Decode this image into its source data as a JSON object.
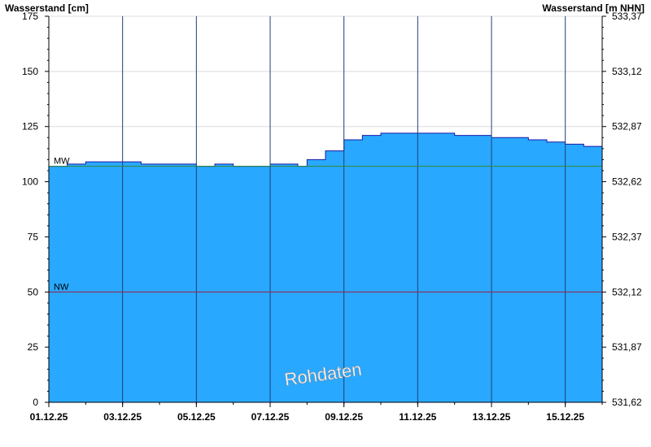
{
  "chart_data": {
    "type": "area",
    "ylabel_left": "Wasserstand [cm]",
    "ylabel_right": "Wasserstand [m NHN]",
    "watermark": "Rohdaten",
    "ylim": [
      0,
      175
    ],
    "xlim": [
      "2025-12-01",
      "2025-12-16"
    ],
    "y_ticks_left": [
      {
        "value": 0,
        "label": "0"
      },
      {
        "value": 25,
        "label": "25"
      },
      {
        "value": 50,
        "label": "50"
      },
      {
        "value": 75,
        "label": "75"
      },
      {
        "value": 100,
        "label": "100"
      },
      {
        "value": 125,
        "label": "125"
      },
      {
        "value": 150,
        "label": "150"
      },
      {
        "value": 175,
        "label": "175"
      }
    ],
    "y_ticks_right": [
      {
        "value": 0,
        "label": "531,62"
      },
      {
        "value": 25,
        "label": "531,87"
      },
      {
        "value": 50,
        "label": "532,12"
      },
      {
        "value": 75,
        "label": "532,37"
      },
      {
        "value": 100,
        "label": "532,62"
      },
      {
        "value": 125,
        "label": "532,87"
      },
      {
        "value": 150,
        "label": "533,12"
      },
      {
        "value": 175,
        "label": "533,37"
      }
    ],
    "x_ticks": [
      {
        "value": "2025-12-01",
        "label": "01.12.25"
      },
      {
        "value": "2025-12-03",
        "label": "03.12.25"
      },
      {
        "value": "2025-12-05",
        "label": "05.12.25"
      },
      {
        "value": "2025-12-07",
        "label": "07.12.25"
      },
      {
        "value": "2025-12-09",
        "label": "09.12.25"
      },
      {
        "value": "2025-12-11",
        "label": "11.12.25"
      },
      {
        "value": "2025-12-13",
        "label": "13.12.25"
      },
      {
        "value": "2025-12-15",
        "label": "15.12.25"
      }
    ],
    "reference_lines": [
      {
        "label": "MW",
        "value": 107,
        "color": "#2e8b3a"
      },
      {
        "label": "NW",
        "value": 50,
        "color": "#9b1c3c"
      }
    ],
    "series": [
      {
        "color": "#29a8ff",
        "outline": "#1a1aa8",
        "points": [
          {
            "x": "2025-12-01 00:00",
            "y": 107
          },
          {
            "x": "2025-12-01 12:00",
            "y": 108
          },
          {
            "x": "2025-12-02 00:00",
            "y": 109
          },
          {
            "x": "2025-12-02 12:00",
            "y": 109
          },
          {
            "x": "2025-12-03 00:00",
            "y": 109
          },
          {
            "x": "2025-12-03 12:00",
            "y": 108
          },
          {
            "x": "2025-12-04 00:00",
            "y": 108
          },
          {
            "x": "2025-12-04 12:00",
            "y": 108
          },
          {
            "x": "2025-12-05 00:00",
            "y": 107
          },
          {
            "x": "2025-12-05 12:00",
            "y": 108
          },
          {
            "x": "2025-12-06 00:00",
            "y": 107
          },
          {
            "x": "2025-12-06 12:00",
            "y": 107
          },
          {
            "x": "2025-12-07 00:00",
            "y": 108
          },
          {
            "x": "2025-12-07 12:00",
            "y": 108
          },
          {
            "x": "2025-12-07 18:00",
            "y": 107
          },
          {
            "x": "2025-12-08 00:00",
            "y": 110
          },
          {
            "x": "2025-12-08 12:00",
            "y": 114
          },
          {
            "x": "2025-12-09 00:00",
            "y": 119
          },
          {
            "x": "2025-12-09 12:00",
            "y": 121
          },
          {
            "x": "2025-12-10 00:00",
            "y": 122
          },
          {
            "x": "2025-12-11 00:00",
            "y": 122
          },
          {
            "x": "2025-12-11 12:00",
            "y": 122
          },
          {
            "x": "2025-12-12 00:00",
            "y": 121
          },
          {
            "x": "2025-12-13 00:00",
            "y": 120
          },
          {
            "x": "2025-12-13 12:00",
            "y": 120
          },
          {
            "x": "2025-12-14 00:00",
            "y": 119
          },
          {
            "x": "2025-12-14 12:00",
            "y": 118
          },
          {
            "x": "2025-12-15 00:00",
            "y": 117
          },
          {
            "x": "2025-12-15 12:00",
            "y": 116
          },
          {
            "x": "2025-12-16 00:00",
            "y": 114
          }
        ]
      }
    ],
    "grid_horizontal": true,
    "grid_vertical": true,
    "colors": {
      "grid_horizontal": "#dcdcdc",
      "grid_vertical": "#1f3f73",
      "axis": "#000000"
    }
  }
}
